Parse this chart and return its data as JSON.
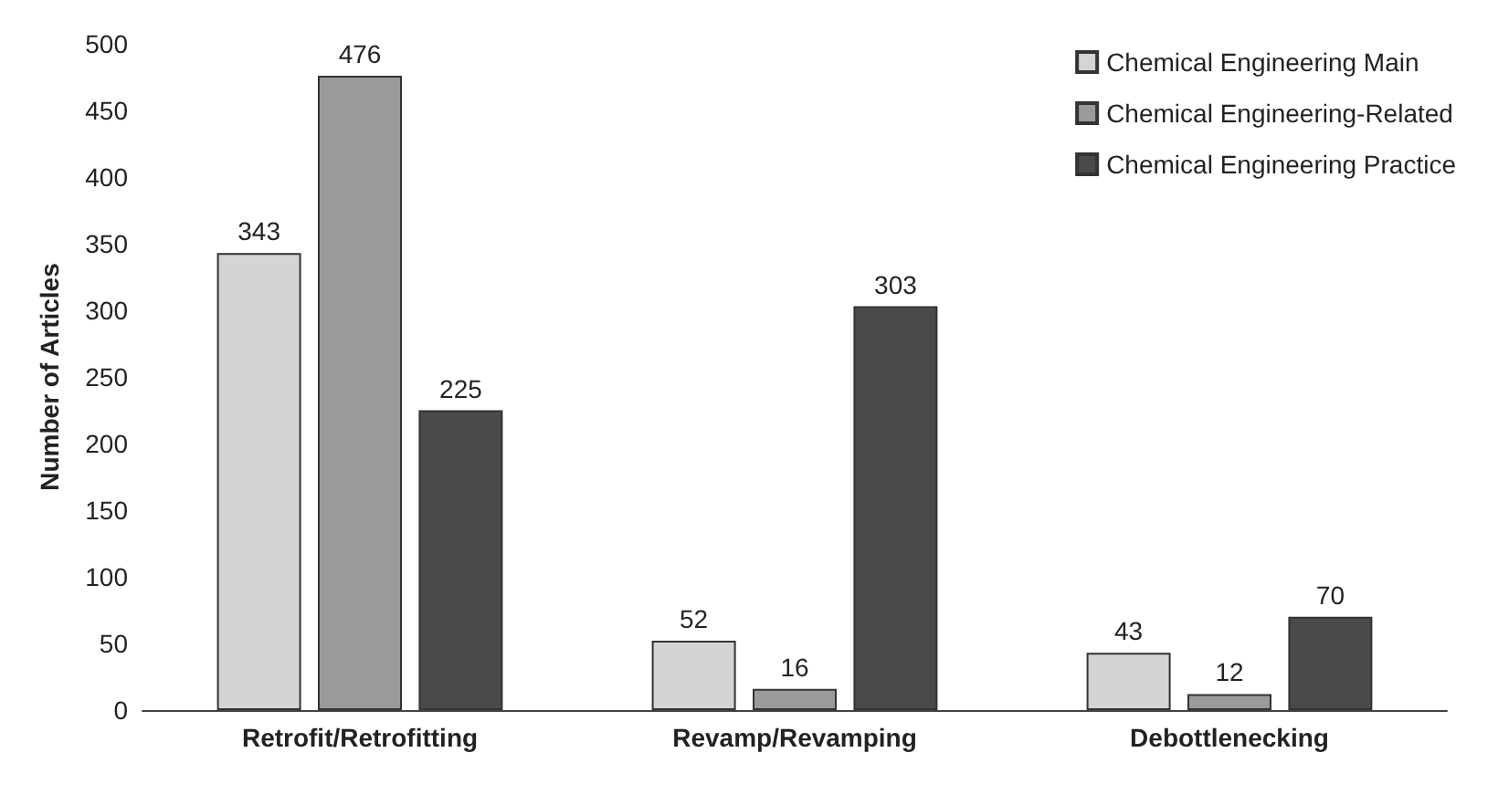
{
  "chart_data": {
    "type": "bar",
    "ylabel": "Number of Articles",
    "categories": [
      "Retrofit/Retrofitting",
      "Revamp/Revamping",
      "Debottlenecking"
    ],
    "series": [
      {
        "name": "Chemical Engineering Main",
        "color": "#d4d4d4",
        "values": [
          343,
          52,
          43
        ]
      },
      {
        "name": "Chemical Engineering-Related",
        "color": "#9a9a9a",
        "values": [
          476,
          16,
          12
        ]
      },
      {
        "name": "Chemical Engineering Practice",
        "color": "#4a4a4a",
        "values": [
          225,
          303,
          70
        ]
      }
    ],
    "ylim": [
      0,
      500
    ],
    "yticks": [
      0,
      50,
      100,
      150,
      200,
      250,
      300,
      350,
      400,
      450,
      500
    ],
    "grid": false,
    "legend": "top right",
    "data_labels": true
  }
}
